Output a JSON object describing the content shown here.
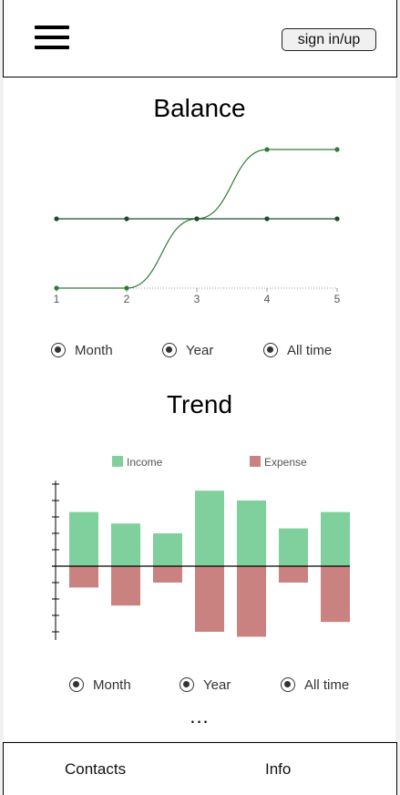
{
  "header": {
    "menu_icon": "hamburger-menu-icon",
    "sign_label": "sign in/up"
  },
  "balance": {
    "title": "Balance",
    "range_options": [
      "Month",
      "Year",
      "All time"
    ],
    "chart_data": {
      "type": "line",
      "x": [
        1,
        2,
        3,
        4,
        5
      ],
      "xlim": [
        1,
        5
      ],
      "x_tick_labels": [
        "1",
        "2",
        "3",
        "4",
        "5"
      ],
      "legend": "none",
      "grid": false,
      "series": [
        {
          "values": [
            0,
            0,
            1,
            2,
            2
          ],
          "style": "smooth",
          "color": "#2e7d32"
        },
        {
          "values": [
            1,
            1,
            1,
            1,
            1
          ],
          "style": "straight",
          "color": "#1b4d2b"
        }
      ],
      "ylim": [
        0,
        2
      ]
    }
  },
  "trend": {
    "title": "Trend",
    "range_options": [
      "Month",
      "Year",
      "All time"
    ],
    "chart_data": {
      "type": "bar",
      "legend_position": "top",
      "series": [
        {
          "name": "Income",
          "color": "#80d09e",
          "values": [
            3.3,
            2.6,
            2.0,
            4.6,
            4.0,
            2.3,
            3.3
          ]
        },
        {
          "name": "Expense",
          "color": "#c98280",
          "values": [
            -1.3,
            -2.4,
            -1.0,
            -4.0,
            -4.3,
            -1.0,
            -3.4
          ]
        }
      ],
      "ylim": [
        -4.5,
        5.2
      ],
      "grid": false
    }
  },
  "more_indicator": "...",
  "footer": {
    "contacts_label": "Contacts",
    "info_label": "Info"
  }
}
